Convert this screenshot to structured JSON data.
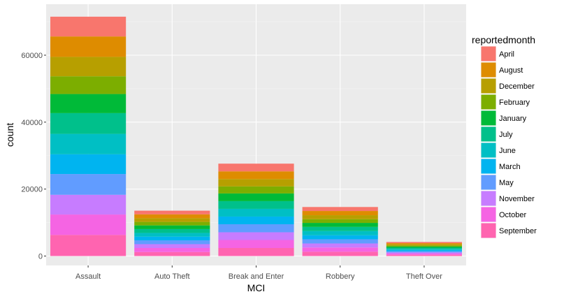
{
  "chart_data": {
    "type": "bar",
    "stacked": true,
    "xlabel": "MCI",
    "ylabel": "count",
    "legend_title": "reportedmonth",
    "legend_position": "right",
    "grid": true,
    "ylim": [
      0,
      74000
    ],
    "yticks": [
      0,
      20000,
      40000,
      60000
    ],
    "categories": [
      "Assault",
      "Auto Theft",
      "Break and Enter",
      "Robbery",
      "Theft Over"
    ],
    "series": [
      {
        "name": "April",
        "color": "#F8766D",
        "values": [
          5900,
          1100,
          2300,
          1200,
          350
        ]
      },
      {
        "name": "August",
        "color": "#DE8C00",
        "values": [
          6100,
          1150,
          2300,
          1250,
          350
        ]
      },
      {
        "name": "December",
        "color": "#B79F00",
        "values": [
          5800,
          1100,
          2200,
          1200,
          340
        ]
      },
      {
        "name": "February",
        "color": "#7CAE00",
        "values": [
          5300,
          1050,
          2100,
          1100,
          320
        ]
      },
      {
        "name": "January",
        "color": "#00BA38",
        "values": [
          5700,
          1100,
          2300,
          1200,
          340
        ]
      },
      {
        "name": "July",
        "color": "#00C08B",
        "values": [
          6200,
          1150,
          2300,
          1250,
          360
        ]
      },
      {
        "name": "June",
        "color": "#00BFC4",
        "values": [
          6100,
          1100,
          2300,
          1250,
          350
        ]
      },
      {
        "name": "March",
        "color": "#00B4F0",
        "values": [
          5900,
          1100,
          2300,
          1200,
          350
        ]
      },
      {
        "name": "May",
        "color": "#619CFF",
        "values": [
          6200,
          1150,
          2400,
          1250,
          360
        ]
      },
      {
        "name": "November",
        "color": "#C77CFF",
        "values": [
          5900,
          1150,
          2300,
          1200,
          350
        ]
      },
      {
        "name": "October",
        "color": "#F564E3",
        "values": [
          6100,
          1200,
          2400,
          1250,
          360
        ]
      },
      {
        "name": "September",
        "color": "#FF64B0",
        "values": [
          6300,
          1200,
          2400,
          1300,
          370
        ]
      }
    ]
  }
}
